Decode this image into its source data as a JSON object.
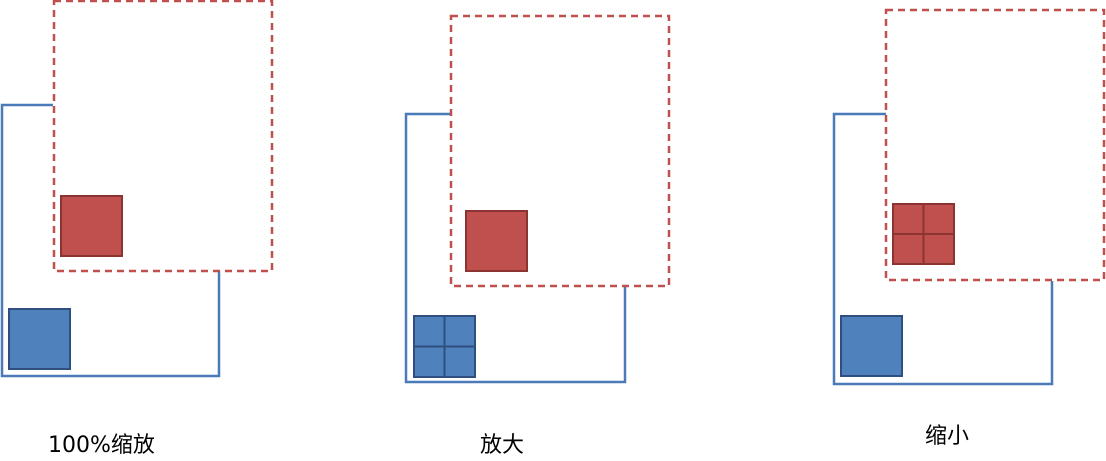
{
  "panels": [
    {
      "caption": "100%缩放",
      "inner_square_grid": "none"
    },
    {
      "caption": "放大",
      "inner_square_grid": "blue"
    },
    {
      "caption": "缩小",
      "inner_square_grid": "red"
    }
  ],
  "colors": {
    "blue_stroke": "#4a7ab7",
    "blue_fill": "#4f81bd",
    "blue_edge": "#2f4f80",
    "red_dash": "#c0504d",
    "red_fill": "#c0504d",
    "red_edge": "#8c3431"
  }
}
